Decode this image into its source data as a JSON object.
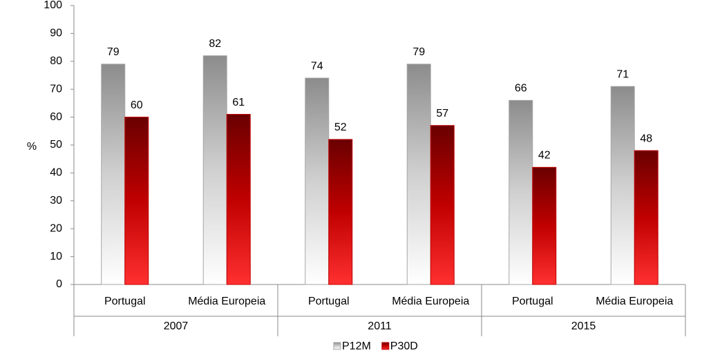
{
  "chart_data": {
    "type": "bar",
    "ylabel": "%",
    "categories": [
      "Portugal",
      "Média Europeia",
      "Portugal",
      "Média Europeia",
      "Portugal",
      "Média Europeia"
    ],
    "groups": [
      "2007",
      "2011",
      "2015"
    ],
    "series": [
      {
        "name": "P12M",
        "color": "#a6a6a6",
        "values": [
          79,
          82,
          74,
          79,
          66,
          71
        ]
      },
      {
        "name": "P30D",
        "color": "#c00000",
        "values": [
          60,
          61,
          52,
          57,
          42,
          48
        ]
      }
    ],
    "ylim": [
      0,
      100
    ],
    "yticks": [
      0,
      10,
      20,
      30,
      40,
      50,
      60,
      70,
      80,
      90,
      100
    ],
    "grid": false,
    "legend": "bottom"
  }
}
